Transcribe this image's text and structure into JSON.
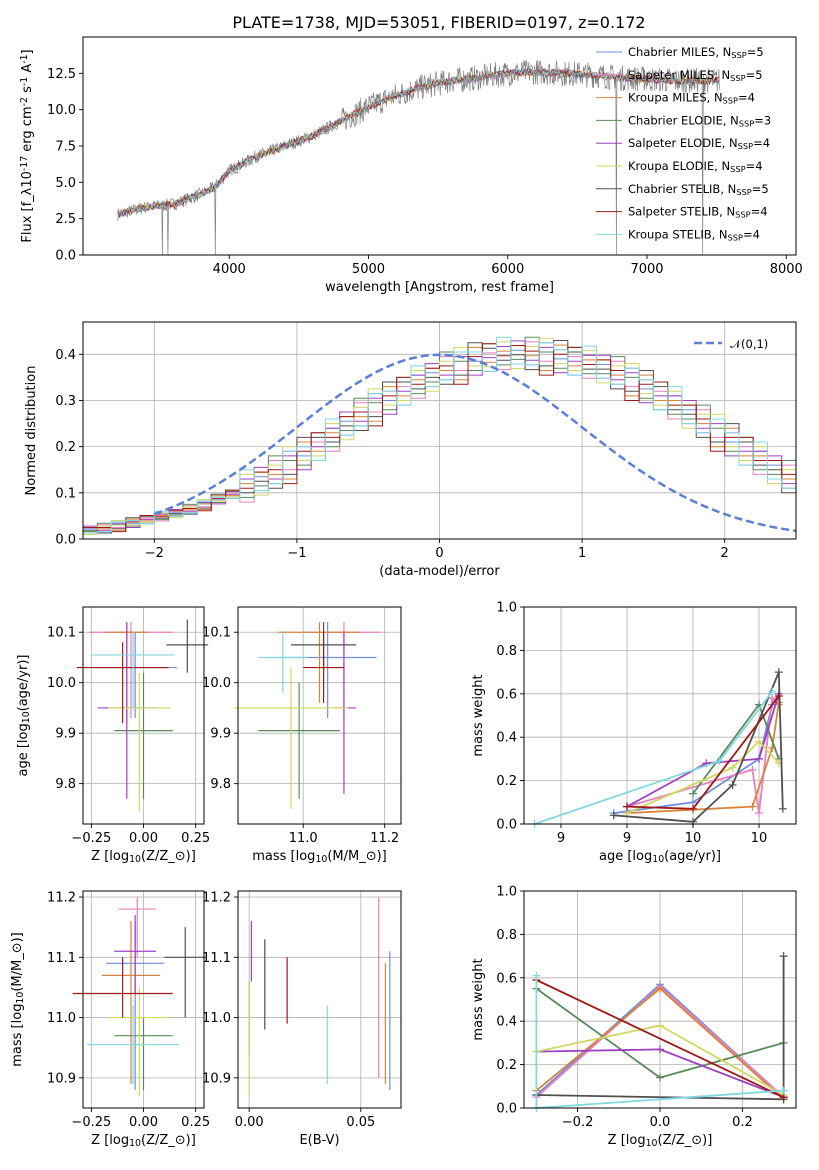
{
  "title": "PLATE=1738, MJD=53051, FIBERID=0197, z=0.172",
  "legend_entries": [
    {
      "label": "Chabrier MILES, N$_{SSP}$=5",
      "color": "#6f8fdc"
    },
    {
      "label": "Salpeter MILES, N$_{SSP}$=5",
      "color": "#ea7fc0"
    },
    {
      "label": "Kroupa MILES, N$_{SSP}$=4",
      "color": "#d8843a"
    },
    {
      "label": "Chabrier ELODIE, N$_{SSP}$=3",
      "color": "#5a8a5a"
    },
    {
      "label": "Salpeter ELODIE, N$_{SSP}$=4",
      "color": "#a040c0"
    },
    {
      "label": "Kroupa ELODIE, N$_{SSP}$=4",
      "color": "#cfd860"
    },
    {
      "label": "Chabrier STELIB, N$_{SSP}$=5",
      "color": "#505050"
    },
    {
      "label": "Salpeter STELIB, N$_{SSP}$=4",
      "color": "#a01818"
    },
    {
      "label": "Kroupa STELIB, N$_{SSP}$=4",
      "color": "#80d8e0"
    }
  ],
  "chart_data": [
    {
      "id": "spectrum",
      "type": "line",
      "xlabel": "wavelength [Angstrom, rest frame]",
      "ylabel": "Flux [f$_\\lambda$10$^{-17}$ erg cm$^{-2}$ s$^{-1}$ A$^{-1}$]",
      "xlim": [
        2950,
        8070
      ],
      "ylim": [
        0,
        15
      ],
      "xticks": [
        4000,
        5000,
        6000,
        7000,
        8000
      ],
      "yticks": [
        0.0,
        2.5,
        5.0,
        7.5,
        10.0,
        12.5
      ],
      "grid": false,
      "legend": "right",
      "x_range": [
        3200,
        7520
      ],
      "continuum": [
        [
          3200,
          2.8
        ],
        [
          3400,
          3.3
        ],
        [
          3600,
          3.5
        ],
        [
          3800,
          4.2
        ],
        [
          3900,
          4.7
        ],
        [
          4000,
          5.8
        ],
        [
          4200,
          6.8
        ],
        [
          4400,
          7.5
        ],
        [
          4600,
          8.2
        ],
        [
          4800,
          9.2
        ],
        [
          5000,
          10.2
        ],
        [
          5200,
          11.0
        ],
        [
          5400,
          11.6
        ],
        [
          5600,
          12.0
        ],
        [
          5800,
          12.2
        ],
        [
          6000,
          12.5
        ],
        [
          6200,
          12.6
        ],
        [
          6400,
          12.5
        ],
        [
          6600,
          12.4
        ],
        [
          6800,
          12.2
        ],
        [
          7000,
          12.1
        ],
        [
          7200,
          12.0
        ],
        [
          7400,
          12.0
        ],
        [
          7520,
          12.0
        ]
      ],
      "dips": [
        [
          3520,
          0.0
        ],
        [
          3560,
          0.0
        ],
        [
          3900,
          0.0
        ],
        [
          6780,
          0.0
        ],
        [
          7400,
          0.0
        ]
      ]
    },
    {
      "id": "residuals",
      "type": "histogram",
      "xlabel": "(data-model)/error",
      "ylabel": "Normed distribution",
      "xlim": [
        -2.5,
        2.5
      ],
      "ylim": [
        0,
        0.47
      ],
      "xticks": [
        -2,
        -1,
        0,
        1,
        2
      ],
      "yticks": [
        0.0,
        0.1,
        0.2,
        0.3,
        0.4
      ],
      "grid": true,
      "legend": "top-right",
      "reference_label": "$\\mathcal{N}(0,1)$",
      "bin_width": 0.1,
      "bin_start": -2.5,
      "base_values": [
        0.019,
        0.022,
        0.028,
        0.034,
        0.042,
        0.048,
        0.055,
        0.063,
        0.073,
        0.085,
        0.097,
        0.11,
        0.125,
        0.14,
        0.16,
        0.18,
        0.2,
        0.22,
        0.245,
        0.265,
        0.285,
        0.3,
        0.32,
        0.335,
        0.35,
        0.365,
        0.375,
        0.385,
        0.393,
        0.397,
        0.399,
        0.397,
        0.395,
        0.39,
        0.385,
        0.378,
        0.368,
        0.355,
        0.34,
        0.325,
        0.31,
        0.29,
        0.27,
        0.25,
        0.23,
        0.21,
        0.19,
        0.17,
        0.15,
        0.13
      ],
      "series_offsets": [
        [
          0.01,
          -0.02,
          0.03,
          0.0,
          -0.03,
          0.02
        ],
        [
          -0.02,
          0.03,
          -0.01,
          0.02,
          0.01,
          -0.03
        ],
        [
          0.02,
          0.0,
          -0.03,
          0.03,
          -0.01,
          0.01
        ],
        [
          -0.01,
          0.04,
          0.01,
          -0.02,
          0.03,
          -0.02
        ],
        [
          0.03,
          -0.01,
          0.02,
          -0.03,
          0.0,
          0.02
        ],
        [
          -0.03,
          0.02,
          0.04,
          -0.01,
          -0.02,
          0.03
        ],
        [
          0.0,
          -0.03,
          -0.02,
          0.04,
          0.02,
          -0.01
        ],
        [
          0.02,
          0.01,
          -0.04,
          0.01,
          0.03,
          0.0
        ],
        [
          -0.02,
          -0.02,
          0.03,
          0.02,
          -0.03,
          0.04
        ]
      ]
    },
    {
      "id": "age-vs-Z",
      "type": "errorbar",
      "xlabel": "Z [log$_{10}$(Z/Z$_\\odot$)]",
      "ylabel": "age  [log$_{10}$(age/yr)]",
      "xlim": [
        -0.29,
        0.29
      ],
      "ylim": [
        9.72,
        10.15
      ],
      "xticks": [
        -0.25,
        0.0,
        0.25
      ],
      "xtick_labels": [
        "−0.25",
        "0.00",
        "0.25"
      ],
      "yticks": [
        9.8,
        9.9,
        10.0,
        10.1
      ],
      "grid": true,
      "points": [
        {
          "x": -0.04,
          "y": 10.03,
          "xerr": 0.2,
          "ylo": 9.93,
          "yhi": 10.1
        },
        {
          "x": -0.06,
          "y": 10.1,
          "xerr": 0.2,
          "ylo": 9.93,
          "yhi": 10.12
        },
        {
          "x": -0.08,
          "y": 10.1,
          "xerr": 0.1,
          "ylo": 9.92,
          "yhi": 10.12
        },
        {
          "x": 0.0,
          "y": 9.905,
          "xerr": 0.14,
          "ylo": 9.77,
          "yhi": 10.02
        },
        {
          "x": -0.08,
          "y": 9.95,
          "xerr": 0.14,
          "ylo": 9.77,
          "yhi": 10.12
        },
        {
          "x": -0.02,
          "y": 9.95,
          "xerr": 0.15,
          "ylo": 9.745,
          "yhi": 10.02
        },
        {
          "x": 0.21,
          "y": 10.075,
          "xerr": 0.1,
          "ylo": 10.02,
          "yhi": 10.125
        },
        {
          "x": -0.1,
          "y": 10.03,
          "xerr": 0.22,
          "ylo": 9.92,
          "yhi": 10.08
        },
        {
          "x": -0.05,
          "y": 10.055,
          "xerr": 0.2,
          "ylo": 9.95,
          "yhi": 10.1
        }
      ]
    },
    {
      "id": "age-vs-mass",
      "type": "errorbar",
      "xlabel": "mass [log$_{10}$(M/M$_\\odot$)]",
      "ylabel": "",
      "xlim": [
        10.84,
        11.24
      ],
      "ylim": [
        9.72,
        10.15
      ],
      "xticks": [
        11.0,
        11.2
      ],
      "xtick_labels": [
        "11.0",
        "11.2"
      ],
      "yticks": [
        9.8,
        9.9,
        10.0,
        10.1
      ],
      "grid": true,
      "points": [
        {
          "x": 11.06,
          "y": 10.05,
          "xerr": 0.12,
          "ylo": 9.93,
          "yhi": 10.12
        },
        {
          "x": 11.1,
          "y": 10.1,
          "xerr": 0.09,
          "ylo": 9.93,
          "yhi": 10.12
        },
        {
          "x": 11.04,
          "y": 10.1,
          "xerr": 0.1,
          "ylo": 9.96,
          "yhi": 10.12
        },
        {
          "x": 10.99,
          "y": 9.905,
          "xerr": 0.1,
          "ylo": 9.77,
          "yhi": 10.0
        },
        {
          "x": 11.1,
          "y": 9.95,
          "xerr": 0.03,
          "ylo": 9.78,
          "yhi": 10.1
        },
        {
          "x": 10.97,
          "y": 9.95,
          "xerr": 0.14,
          "ylo": 9.75,
          "yhi": 10.03
        },
        {
          "x": 11.05,
          "y": 10.075,
          "xerr": 0.08,
          "ylo": 10.02,
          "yhi": 10.12
        },
        {
          "x": 11.05,
          "y": 10.03,
          "xerr": 0.05,
          "ylo": 9.96,
          "yhi": 10.1
        },
        {
          "x": 10.95,
          "y": 10.05,
          "xerr": 0.06,
          "ylo": 9.98,
          "yhi": 10.1
        }
      ]
    },
    {
      "id": "massweight-vs-age",
      "type": "line",
      "xlabel": "age  [log$_{10}$(age/yr)]",
      "ylabel": "mass weight",
      "xlim": [
        8.22,
        10.28
      ],
      "ylim": [
        0.0,
        1.0
      ],
      "xticks": [
        8.5,
        9.0,
        9.5,
        10.0
      ],
      "yticks": [
        0.0,
        0.2,
        0.4,
        0.6,
        0.8,
        1.0
      ],
      "grid": true,
      "series": [
        {
          "values": [
            [
              8.9,
              0.05
            ],
            [
              9.5,
              0.1
            ],
            [
              10.0,
              0.3
            ],
            [
              10.1,
              0.55
            ],
            [
              10.15,
              0.6
            ]
          ]
        },
        {
          "values": [
            [
              9.0,
              0.08
            ],
            [
              9.95,
              0.25
            ],
            [
              10.0,
              0.05
            ],
            [
              10.1,
              0.58
            ],
            [
              10.15,
              0.55
            ]
          ]
        },
        {
          "values": [
            [
              9.0,
              0.05
            ],
            [
              9.95,
              0.08
            ],
            [
              10.1,
              0.35
            ],
            [
              10.15,
              0.56
            ]
          ]
        },
        {
          "values": [
            [
              9.5,
              0.14
            ],
            [
              10.0,
              0.55
            ],
            [
              10.15,
              0.3
            ]
          ]
        },
        {
          "values": [
            [
              9.0,
              0.08
            ],
            [
              9.6,
              0.28
            ],
            [
              10.0,
              0.3
            ],
            [
              10.15,
              0.6
            ]
          ]
        },
        {
          "values": [
            [
              9.0,
              0.05
            ],
            [
              9.8,
              0.26
            ],
            [
              10.0,
              0.38
            ],
            [
              10.15,
              0.28
            ]
          ]
        },
        {
          "values": [
            [
              8.9,
              0.04
            ],
            [
              9.5,
              0.01
            ],
            [
              9.8,
              0.18
            ],
            [
              10.15,
              0.7
            ],
            [
              10.18,
              0.07
            ]
          ]
        },
        {
          "values": [
            [
              9.0,
              0.08
            ],
            [
              9.5,
              0.07
            ],
            [
              10.15,
              0.59
            ]
          ]
        },
        {
          "values": [
            [
              8.3,
              0.0
            ],
            [
              9.7,
              0.29
            ],
            [
              10.1,
              0.61
            ]
          ]
        }
      ]
    },
    {
      "id": "mass-vs-Z",
      "type": "errorbar",
      "xlabel": "Z [log$_{10}$(Z/Z$_\\odot$)]",
      "ylabel": "mass [log$_{10}$(M/M$_\\odot$)]",
      "xlim": [
        -0.29,
        0.29
      ],
      "ylim": [
        10.85,
        11.21
      ],
      "xticks": [
        -0.25,
        0.0,
        0.25
      ],
      "xtick_labels": [
        "−0.25",
        "0.00",
        "0.25"
      ],
      "yticks": [
        10.9,
        11.0,
        11.1,
        11.2
      ],
      "grid": true,
      "points": [
        {
          "x": -0.04,
          "y": 11.09,
          "xerr": 0.14,
          "ylo": 10.88,
          "yhi": 11.16
        },
        {
          "x": -0.03,
          "y": 11.18,
          "xerr": 0.09,
          "ylo": 11.1,
          "yhi": 11.2
        },
        {
          "x": -0.06,
          "y": 11.07,
          "xerr": 0.14,
          "ylo": 10.89,
          "yhi": 11.16
        },
        {
          "x": 0.0,
          "y": 10.97,
          "xerr": 0.14,
          "ylo": 10.88,
          "yhi": 11.0
        },
        {
          "x": -0.04,
          "y": 11.11,
          "xerr": 0.1,
          "ylo": 11.04,
          "yhi": 11.17
        },
        {
          "x": -0.02,
          "y": 11.0,
          "xerr": 0.15,
          "ylo": 10.87,
          "yhi": 11.05
        },
        {
          "x": 0.2,
          "y": 11.1,
          "xerr": 0.1,
          "ylo": 11.0,
          "yhi": 11.15
        },
        {
          "x": -0.1,
          "y": 11.04,
          "xerr": 0.24,
          "ylo": 11.0,
          "yhi": 11.1
        },
        {
          "x": -0.05,
          "y": 10.955,
          "xerr": 0.22,
          "ylo": 10.89,
          "yhi": 11.02
        }
      ]
    },
    {
      "id": "mass-vs-EBV",
      "type": "errorbar",
      "xlabel": "E(B-V)",
      "ylabel": "",
      "xlim": [
        -0.005,
        0.068
      ],
      "ylim": [
        10.85,
        11.21
      ],
      "xticks": [
        0.0,
        0.05
      ],
      "xtick_labels": [
        "0.00",
        "0.05"
      ],
      "yticks": [
        10.9,
        11.0,
        11.1,
        11.2
      ],
      "grid": true,
      "points": [
        {
          "x": 0.063,
          "y": 11.0,
          "xerr": 0,
          "ylo": 10.88,
          "yhi": 11.11
        },
        {
          "x": 0.058,
          "y": 11.05,
          "xerr": 0,
          "ylo": 10.9,
          "yhi": 11.2
        },
        {
          "x": 0.061,
          "y": 10.99,
          "xerr": 0,
          "ylo": 10.89,
          "yhi": 11.09
        },
        {
          "x": 0.0,
          "y": 11.0,
          "xerr": 0,
          "ylo": 10.94,
          "yhi": 11.06
        },
        {
          "x": 0.001,
          "y": 11.1,
          "xerr": 0,
          "ylo": 11.06,
          "yhi": 11.16
        },
        {
          "x": 0.0,
          "y": 10.96,
          "xerr": 0,
          "ylo": 10.87,
          "yhi": 11.06
        },
        {
          "x": 0.007,
          "y": 11.05,
          "xerr": 0,
          "ylo": 10.98,
          "yhi": 11.13
        },
        {
          "x": 0.017,
          "y": 11.05,
          "xerr": 0,
          "ylo": 10.99,
          "yhi": 11.1
        },
        {
          "x": 0.035,
          "y": 10.95,
          "xerr": 0,
          "ylo": 10.89,
          "yhi": 11.02
        }
      ]
    },
    {
      "id": "massweight-vs-Z",
      "type": "line",
      "xlabel": "Z [log$_{10}$(Z/Z$_\\odot$)]",
      "ylabel": "mass weight",
      "xlim": [
        -0.33,
        0.33
      ],
      "ylim": [
        0.0,
        1.0
      ],
      "xticks": [
        -0.2,
        0.0,
        0.2
      ],
      "xtick_labels": [
        "−0.2",
        "0.0",
        "0.2"
      ],
      "yticks": [
        0.0,
        0.2,
        0.4,
        0.6,
        0.8,
        1.0
      ],
      "grid": true,
      "series": [
        {
          "values": [
            [
              -0.3,
              0.06
            ],
            [
              0.0,
              0.57
            ],
            [
              0.3,
              0.05
            ]
          ]
        },
        {
          "values": [
            [
              -0.3,
              0.05
            ],
            [
              0.0,
              0.56
            ],
            [
              0.3,
              0.05
            ]
          ]
        },
        {
          "values": [
            [
              -0.3,
              0.08
            ],
            [
              0.0,
              0.55
            ],
            [
              0.3,
              0.04
            ]
          ]
        },
        {
          "values": [
            [
              -0.3,
              0.55
            ],
            [
              0.0,
              0.14
            ],
            [
              0.3,
              0.3
            ]
          ]
        },
        {
          "values": [
            [
              -0.3,
              0.26
            ],
            [
              0.0,
              0.27
            ],
            [
              0.3,
              0.05
            ]
          ]
        },
        {
          "values": [
            [
              -0.3,
              0.26
            ],
            [
              0.0,
              0.38
            ],
            [
              0.3,
              0.06
            ]
          ]
        },
        {
          "values": [
            [
              -0.3,
              0.06
            ],
            [
              0.3,
              0.04
            ],
            [
              0.3,
              0.7
            ]
          ]
        },
        {
          "values": [
            [
              -0.3,
              0.59
            ],
            [
              0.3,
              0.05
            ]
          ]
        },
        {
          "values": [
            [
              -0.3,
              0.61
            ],
            [
              -0.3,
              0.0
            ],
            [
              0.3,
              0.08
            ]
          ]
        }
      ]
    }
  ]
}
